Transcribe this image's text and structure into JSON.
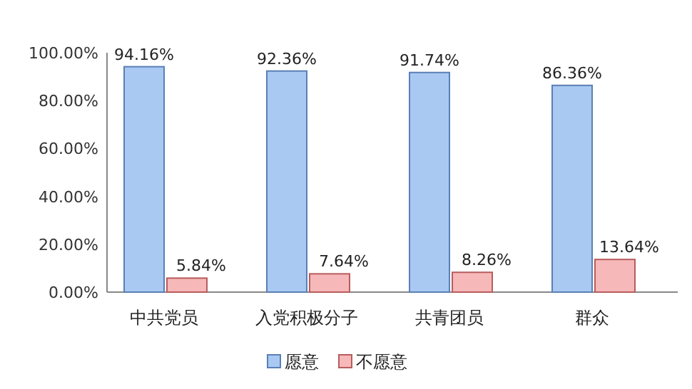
{
  "chart_data": {
    "type": "bar",
    "categories": [
      "中共党员",
      "入党积极分子",
      "共青团员",
      "群众"
    ],
    "series": [
      {
        "name": "愿意",
        "color": "#a9c9f2",
        "values": [
          94.16,
          92.36,
          91.74,
          86.36
        ],
        "value_labels": [
          "94.16%",
          "92.36%",
          "91.74%",
          "86.36%"
        ]
      },
      {
        "name": "不愿意",
        "color": "#f6b8b8",
        "values": [
          5.84,
          7.64,
          8.26,
          13.64
        ],
        "value_labels": [
          "5.84%",
          "7.64%",
          "8.26%",
          "13.64%"
        ]
      }
    ],
    "ylim": [
      0,
      100
    ],
    "yticks": [
      {
        "value": 0,
        "label": "0.00%"
      },
      {
        "value": 20,
        "label": "20.00%"
      },
      {
        "value": 40,
        "label": "40.00%"
      },
      {
        "value": 60,
        "label": "60.00%"
      },
      {
        "value": 80,
        "label": "80.00%"
      },
      {
        "value": 100,
        "label": "100.00%"
      }
    ],
    "grid": false,
    "legend": "bottom"
  }
}
